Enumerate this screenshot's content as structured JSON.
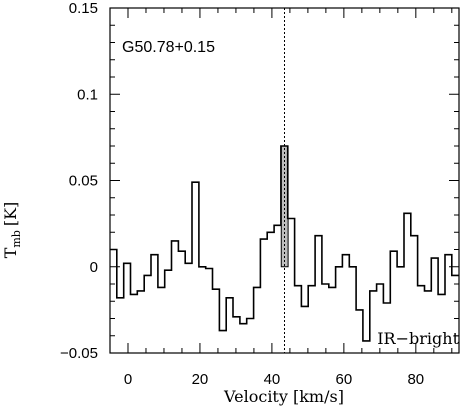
{
  "chart_data": {
    "type": "line",
    "step": true,
    "xlabel": "Velocity [km/s]",
    "ylabel_main": "T",
    "ylabel_sub": "mb",
    "ylabel_unit": "[K]",
    "xlim": [
      -5,
      92
    ],
    "ylim": [
      -0.05,
      0.15
    ],
    "xticks": [
      0,
      20,
      40,
      60,
      80
    ],
    "xtick_labels": [
      "0",
      "20",
      "40",
      "60",
      "80"
    ],
    "yticks": [
      -0.05,
      0,
      0.05,
      0.1,
      0.15
    ],
    "ytick_labels": [
      "−0.05",
      "0",
      "0.05",
      "0.1",
      "0.15"
    ],
    "source_label": "G50.78+0.15",
    "corner_label": "IR−bright",
    "reference_velocity": 43.5,
    "highlight": {
      "x0": 42.6,
      "x1": 44.5,
      "y": 0.07
    },
    "series": [
      {
        "x": [
          -5,
          -3.1,
          -1.2,
          0.7,
          2.6,
          4.5,
          6.4,
          8.3,
          10.2,
          12.1,
          14,
          15.9,
          17.8,
          19.7,
          21.6,
          23.5,
          25.4,
          27.3,
          29.2,
          31.1,
          33,
          34.9,
          36.8,
          38.7,
          40.6,
          42.5,
          44.4,
          46.3,
          48.2,
          50.1,
          52,
          53.9,
          55.8,
          57.7,
          59.6,
          61.5,
          63.4,
          65.3,
          67.2,
          69.1,
          71,
          72.9,
          74.8,
          76.7,
          78.6,
          80.5,
          82.4,
          84.3,
          86.2,
          88.1,
          90,
          92
        ],
        "y": [
          0.01,
          -0.018,
          0.002,
          -0.016,
          -0.014,
          -0.005,
          0.007,
          -0.012,
          -0.002,
          0.015,
          0.009,
          0.002,
          0.049,
          0.0,
          -0.001,
          -0.013,
          -0.037,
          -0.018,
          -0.029,
          -0.033,
          -0.03,
          -0.012,
          0.016,
          0.02,
          0.024,
          0.07,
          0.028,
          -0.011,
          -0.023,
          -0.011,
          0.018,
          -0.01,
          -0.012,
          0.0,
          0.007,
          0.0,
          -0.025,
          -0.043,
          -0.014,
          -0.01,
          -0.021,
          0.009,
          0.0,
          0.031,
          0.018,
          -0.011,
          -0.014,
          0.005,
          -0.016,
          0.007,
          -0.005,
          -0.005
        ]
      }
    ]
  }
}
